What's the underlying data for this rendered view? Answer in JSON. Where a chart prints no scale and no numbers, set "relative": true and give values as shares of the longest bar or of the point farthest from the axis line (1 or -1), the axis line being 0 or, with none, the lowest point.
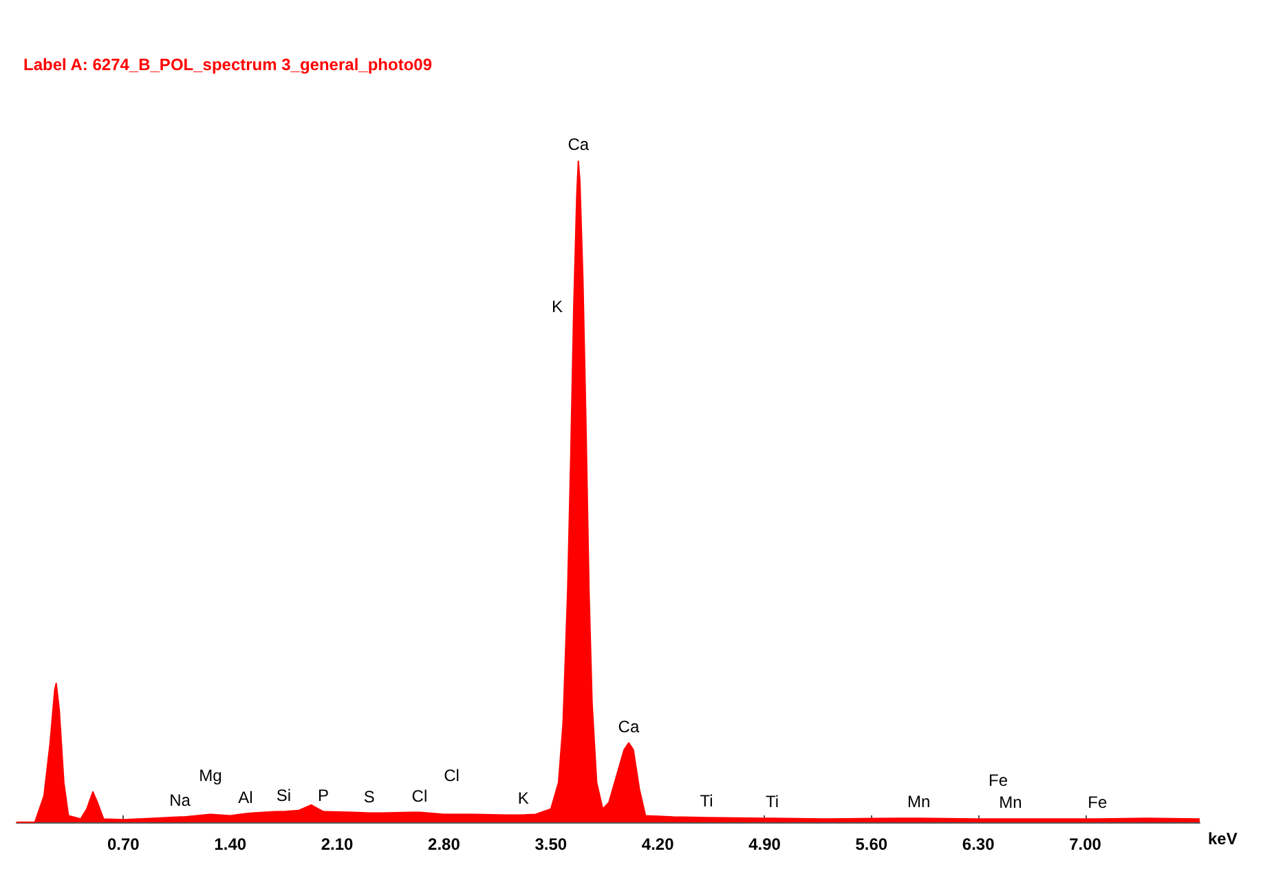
{
  "chart_data": {
    "type": "area",
    "title": "Label A: 6274_B_POL_spectrum 3_general_photo09",
    "xlabel": "keV",
    "relative": true,
    "grid": false,
    "marker": "none",
    "xlim": [
      0,
      7.75
    ],
    "xticks": [
      {
        "value": 0.7,
        "label": "0.70"
      },
      {
        "value": 1.4,
        "label": "1.40"
      },
      {
        "value": 2.1,
        "label": "2.10"
      },
      {
        "value": 2.8,
        "label": "2.80"
      },
      {
        "value": 3.5,
        "label": "3.50"
      },
      {
        "value": 4.2,
        "label": "4.20"
      },
      {
        "value": 4.9,
        "label": "4.90"
      },
      {
        "value": 5.6,
        "label": "5.60"
      },
      {
        "value": 6.3,
        "label": "6.30"
      },
      {
        "value": 7.0,
        "label": "7.00"
      }
    ],
    "series": [
      {
        "color": "#ff0000",
        "x": [
          0.0,
          0.12,
          0.18,
          0.22,
          0.25,
          0.26,
          0.28,
          0.31,
          0.34,
          0.42,
          0.46,
          0.5,
          0.53,
          0.57,
          0.7,
          0.9,
          1.07,
          1.1,
          1.27,
          1.4,
          1.5,
          1.55,
          1.7,
          1.75,
          1.85,
          1.93,
          2.01,
          2.2,
          2.31,
          2.4,
          2.6,
          2.64,
          2.8,
          2.85,
          3.0,
          3.2,
          3.32,
          3.4,
          3.5,
          3.55,
          3.58,
          3.61,
          3.63,
          3.65,
          3.67,
          3.68,
          3.69,
          3.71,
          3.73,
          3.75,
          3.77,
          3.8,
          3.84,
          3.88,
          3.93,
          3.98,
          4.01,
          4.04,
          4.08,
          4.12,
          4.3,
          4.52,
          4.9,
          4.95,
          5.3,
          5.8,
          5.91,
          6.3,
          6.43,
          6.51,
          6.9,
          7.08,
          7.4,
          7.75
        ],
        "values": [
          0,
          0,
          0.04,
          0.12,
          0.2,
          0.21,
          0.17,
          0.06,
          0.01,
          0.005,
          0.02,
          0.046,
          0.03,
          0.005,
          0.004,
          0.006,
          0.008,
          0.008,
          0.012,
          0.01,
          0.013,
          0.014,
          0.016,
          0.016,
          0.018,
          0.026,
          0.016,
          0.015,
          0.014,
          0.014,
          0.015,
          0.015,
          0.012,
          0.012,
          0.012,
          0.011,
          0.011,
          0.012,
          0.02,
          0.06,
          0.15,
          0.35,
          0.55,
          0.78,
          0.95,
          1.0,
          0.97,
          0.82,
          0.6,
          0.35,
          0.18,
          0.06,
          0.02,
          0.03,
          0.07,
          0.11,
          0.12,
          0.11,
          0.05,
          0.01,
          0.008,
          0.007,
          0.006,
          0.006,
          0.005,
          0.006,
          0.006,
          0.005,
          0.005,
          0.005,
          0.005,
          0.005,
          0.006,
          0.005
        ]
      }
    ],
    "annotations": [
      {
        "text": "Na",
        "x": 1.07,
        "y": 0.008
      },
      {
        "text": "Mg",
        "x": 1.27,
        "y": 0.012
      },
      {
        "text": "Al",
        "x": 1.5,
        "y": 0.013
      },
      {
        "text": "Si",
        "x": 1.75,
        "y": 0.016
      },
      {
        "text": "P",
        "x": 2.01,
        "y": 0.016
      },
      {
        "text": "S",
        "x": 2.31,
        "y": 0.014
      },
      {
        "text": "Cl",
        "x": 2.64,
        "y": 0.015
      },
      {
        "text": "Cl",
        "x": 2.85,
        "y": 0.012
      },
      {
        "text": "K",
        "x": 3.32,
        "y": 0.011
      },
      {
        "text": "K",
        "x": 3.65,
        "y": 0.78
      },
      {
        "text": "Ca",
        "x": 3.68,
        "y": 1.0
      },
      {
        "text": "Ca",
        "x": 4.01,
        "y": 0.12
      },
      {
        "text": "Ti",
        "x": 4.52,
        "y": 0.007
      },
      {
        "text": "Ti",
        "x": 4.95,
        "y": 0.006
      },
      {
        "text": "Mn",
        "x": 5.91,
        "y": 0.006
      },
      {
        "text": "Mn",
        "x": 6.51,
        "y": 0.005
      },
      {
        "text": "Fe",
        "x": 6.43,
        "y": 0.005
      },
      {
        "text": "Fe",
        "x": 7.08,
        "y": 0.005
      }
    ]
  }
}
